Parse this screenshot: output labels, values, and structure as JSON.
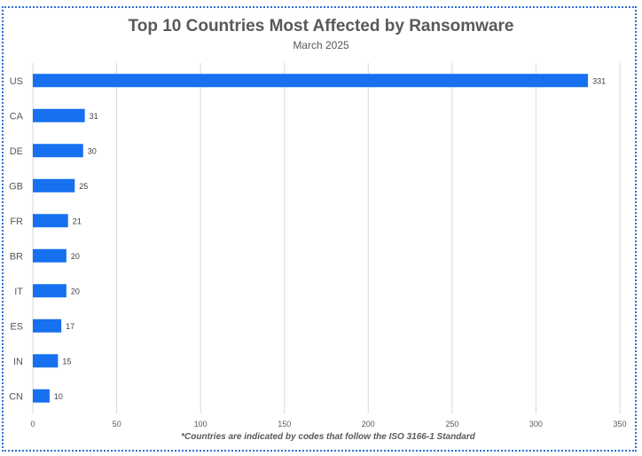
{
  "chart_data": {
    "type": "bar",
    "orientation": "horizontal",
    "title": "Top 10 Countries Most Affected by Ransomware",
    "subtitle": "March 2025",
    "categories": [
      "US",
      "CA",
      "DE",
      "GB",
      "FR",
      "BR",
      "IT",
      "ES",
      "IN",
      "CN"
    ],
    "values": [
      331,
      31,
      30,
      25,
      21,
      20,
      20,
      17,
      15,
      10
    ],
    "xlabel": "",
    "ylabel": "",
    "xlim": [
      0,
      350
    ],
    "xticks": [
      0,
      50,
      100,
      150,
      200,
      250,
      300,
      350
    ],
    "grid": true,
    "bar_color": "#1670f0",
    "footnote": "*Countries are indicated by codes that follow the ISO 3166-1 Standard"
  }
}
